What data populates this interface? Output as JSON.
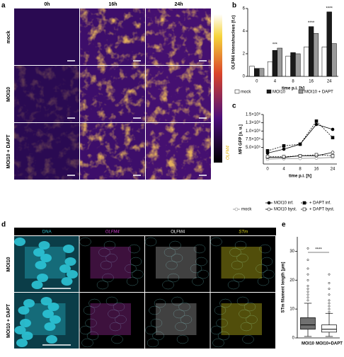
{
  "panel_labels": [
    "a",
    "b",
    "c",
    "d",
    "e"
  ],
  "panel_a": {
    "columns": [
      "0h",
      "16h",
      "24h"
    ],
    "rows": [
      "mock",
      "MOI10",
      "MOI10 + DAPT"
    ],
    "colorbar_label": "OLFM4"
  },
  "panel_d": {
    "columns": [
      "DNA",
      "OLFM4",
      "OLFM4",
      "STm"
    ],
    "rows": [
      "MOI10",
      "MOI10 + DAPT"
    ]
  },
  "chart_data": [
    {
      "type": "bar",
      "y_label": "OLFM4 intens/nucleus (f.c)",
      "x_label": "time p.i. [h]",
      "categories": [
        "0",
        "4",
        "8",
        "16",
        "24"
      ],
      "series": [
        {
          "name": "mock",
          "color": "#ffffff",
          "values": [
            0.9,
            1.3,
            1.8,
            2.6,
            2.6
          ]
        },
        {
          "name": "MOI10",
          "color": "#1a1a1a",
          "values": [
            0.7,
            2.3,
            2.1,
            4.4,
            5.7
          ]
        },
        {
          "name": "MOI10 + DAPT",
          "color": "#9a9a9a",
          "values": [
            0.7,
            2.5,
            2.0,
            3.8,
            2.9
          ]
        }
      ],
      "significance": [
        null,
        "***",
        null,
        "****",
        "****"
      ],
      "ylim": [
        0,
        6
      ],
      "yticks": [
        0,
        2,
        4,
        6
      ]
    },
    {
      "type": "line",
      "y_label": "MFI GFP [a. u.]",
      "x_label": "time p.i. [h]",
      "categories": [
        "0",
        "4",
        "8",
        "16",
        "24"
      ],
      "series": [
        {
          "name": "mock",
          "color": "#ffffff",
          "marker": "circle",
          "dashed": false,
          "values": [
            150000,
            160000,
            170000,
            180000,
            200000
          ]
        },
        {
          "name": "MOI10 inf.",
          "color": "#000000",
          "marker": "circle",
          "dashed": false,
          "values": [
            330000,
            450000,
            600000,
            1200000,
            1050000
          ]
        },
        {
          "name": "+ DAPT inf.",
          "color": "#000000",
          "marker": "square",
          "dashed": true,
          "values": [
            400000,
            550000,
            600000,
            1300000,
            800000
          ]
        },
        {
          "name": "MOI10 byst.",
          "color": "#ffffff",
          "marker": "circle",
          "dashed": false,
          "values": [
            200000,
            200000,
            250000,
            250000,
            350000
          ]
        },
        {
          "name": "+ DAPT byst.",
          "color": "#ffffff",
          "marker": "square",
          "dashed": true,
          "values": [
            220000,
            220000,
            250000,
            280000,
            250000
          ]
        }
      ],
      "ylim": [
        0,
        1500000
      ],
      "yticks": [
        {
          "value": 500000,
          "label": "5.0×10⁵"
        },
        {
          "value": 750000,
          "label": "7.5×10⁵"
        },
        {
          "value": 1000000,
          "label": "1.0×10⁶"
        },
        {
          "value": 1250000,
          "label": "1.3×10⁶"
        },
        {
          "value": 1500000,
          "label": "1.5×10⁶"
        }
      ]
    },
    {
      "type": "box",
      "y_label": "STm filament length [μm]",
      "categories": [
        "MOI10",
        "MOI10+DAPT"
      ],
      "boxes": [
        {
          "whislo": 0.5,
          "q1": 3,
          "med": 4.5,
          "q3": 7,
          "whishi": 12,
          "outliers": [
            13,
            14,
            15,
            16,
            17,
            18,
            20,
            22,
            24,
            27,
            31
          ]
        },
        {
          "whislo": 0.5,
          "q1": 2,
          "med": 3,
          "q3": 4.5,
          "whishi": 8.5,
          "outliers": [
            9,
            10,
            11,
            12,
            13,
            15,
            17,
            19,
            22
          ]
        }
      ],
      "significance": "****",
      "ylim": [
        0,
        35
      ],
      "yticks": [
        0,
        10,
        20,
        30
      ]
    }
  ]
}
